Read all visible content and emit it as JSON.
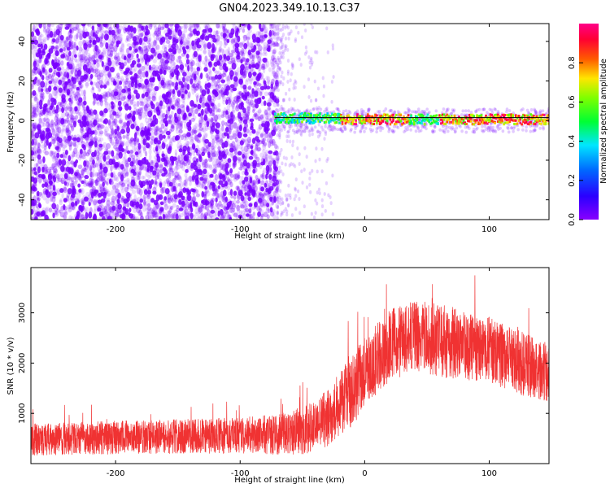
{
  "title": "GN04.2023.349.10.13.C37",
  "colorbar": {
    "label": "Normalized spectral amplitude",
    "range": [
      0,
      1
    ],
    "ticks": [
      "0.0",
      "0.2",
      "0.4",
      "0.6",
      "0.8"
    ],
    "tick_values": [
      0.0,
      0.2,
      0.4,
      0.6,
      0.8
    ],
    "colormap": "gist_rainbow_r (purple-blue-cyan-green-yellow-red-magenta)"
  },
  "chart_data": [
    {
      "type": "heatmap",
      "xlabel": "Height of straight line (km)",
      "ylabel": "Frequency (Hz)",
      "xlim": [
        -268,
        148
      ],
      "ylim": [
        -50,
        49
      ],
      "xticks": [
        -200,
        -100,
        0,
        100
      ],
      "xtick_labels": [
        "-200",
        "-100",
        "0",
        "100"
      ],
      "yticks": [
        -40,
        -20,
        0,
        20,
        40
      ],
      "ytick_labels": [
        "-40",
        "-20",
        "0",
        "20",
        "40"
      ],
      "features": {
        "noise_region_x": [
          -268,
          -70
        ],
        "noise_amplitude": "low (0.0-0.1)",
        "signal_band_x": [
          -72,
          148
        ],
        "signal_band_frequency_hz": [
          -3,
          3
        ],
        "peak_amplitude_segments_x": [
          [
            -20,
            35
          ],
          [
            60,
            148
          ]
        ]
      }
    },
    {
      "type": "line",
      "xlabel": "Height of straight line (km)",
      "ylabel": "SNR (10 * v/v)",
      "xlim": [
        -268,
        148
      ],
      "ylim": [
        0,
        3900
      ],
      "xticks": [
        -200,
        -100,
        0,
        100
      ],
      "xtick_labels": [
        "-200",
        "-100",
        "0",
        "100"
      ],
      "yticks": [
        1000,
        2000,
        3000
      ],
      "ytick_labels": [
        "1000",
        "2000",
        "3000"
      ],
      "color": "#f03232",
      "envelope": {
        "x": [
          -268,
          -200,
          -150,
          -100,
          -70,
          -50,
          -30,
          -20,
          -10,
          0,
          10,
          20,
          30,
          40,
          50,
          60,
          70,
          80,
          90,
          100,
          110,
          120,
          130,
          140,
          148
        ],
        "y_mid": [
          480,
          520,
          540,
          560,
          580,
          650,
          900,
          1200,
          1450,
          1800,
          2100,
          2350,
          2450,
          2500,
          2500,
          2450,
          2400,
          2350,
          2300,
          2250,
          2150,
          2050,
          1950,
          1850,
          1800
        ],
        "y_spread": [
          400,
          420,
          430,
          450,
          500,
          600,
          700,
          800,
          900,
          900,
          900,
          900,
          900,
          900,
          900,
          900,
          900,
          900,
          850,
          850,
          800,
          800,
          800,
          750,
          750
        ]
      }
    }
  ]
}
